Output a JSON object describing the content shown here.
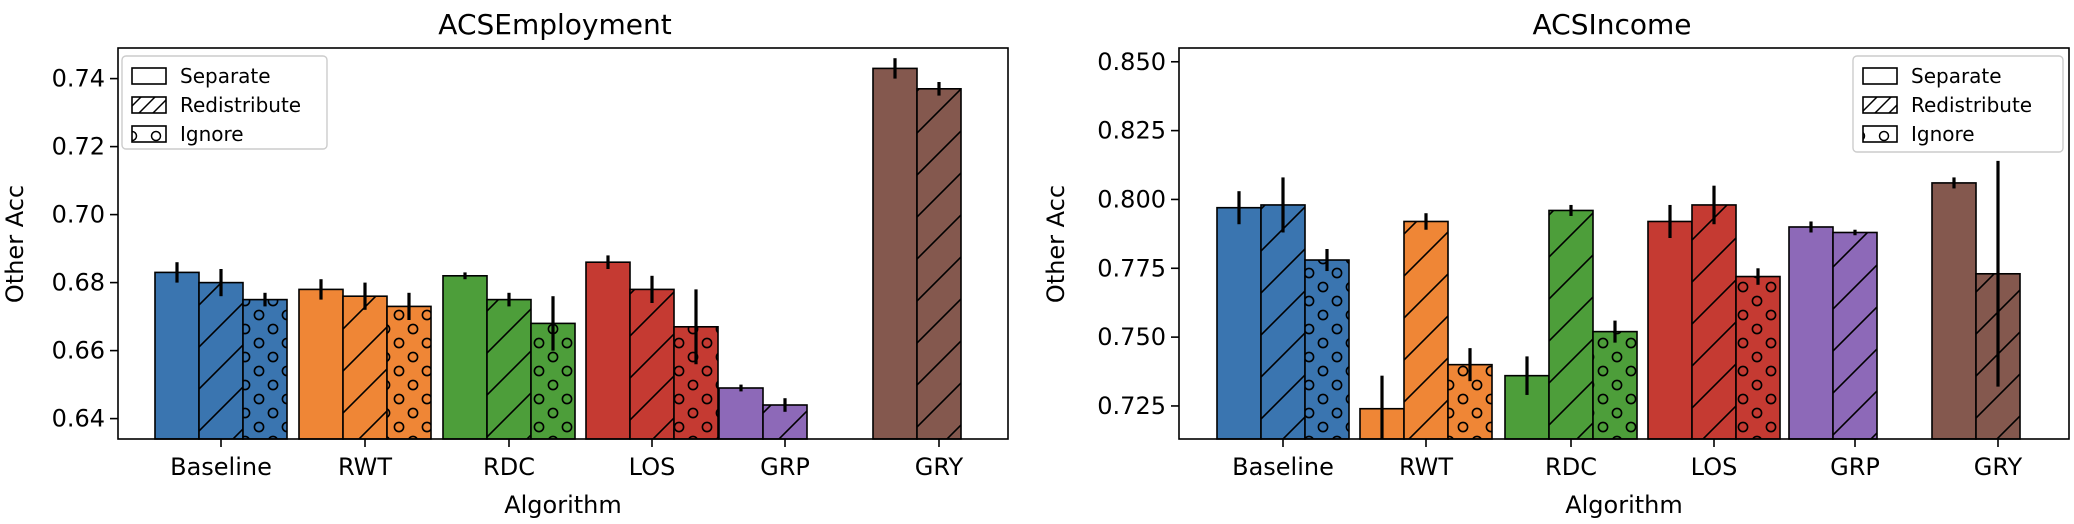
{
  "chart_data": [
    {
      "type": "bar",
      "title": "ACSEmployment",
      "xlabel": "Algorithm",
      "ylabel": "Other Acc",
      "ylim": [
        0.634,
        0.749
      ],
      "yticks": [
        0.64,
        0.66,
        0.68,
        0.7,
        0.72,
        0.74
      ],
      "ytick_labels": [
        "0.64",
        "0.66",
        "0.68",
        "0.70",
        "0.72",
        "0.74"
      ],
      "legend_position": "top-left",
      "categories": [
        "Baseline",
        "RWT",
        "RDC",
        "LOS",
        "GRP",
        "GRY"
      ],
      "category_colors": [
        "#3a75b0",
        "#ef8636",
        "#4d9e3a",
        "#c53a32",
        "#8d69b8",
        "#84584e"
      ],
      "series": [
        {
          "name": "Separate",
          "hatch": "none",
          "values": [
            0.683,
            0.678,
            0.682,
            0.686,
            0.649,
            0.743
          ],
          "errors": [
            0.003,
            0.003,
            0.001,
            0.002,
            0.001,
            0.003
          ]
        },
        {
          "name": "Redistribute",
          "hatch": "diagonal",
          "values": [
            0.68,
            0.676,
            0.675,
            0.678,
            0.644,
            0.737
          ],
          "errors": [
            0.004,
            0.004,
            0.002,
            0.004,
            0.002,
            0.002
          ]
        },
        {
          "name": "Ignore",
          "hatch": "circles",
          "values": [
            0.675,
            0.673,
            0.668,
            0.667,
            null,
            null
          ],
          "errors": [
            0.002,
            0.004,
            0.008,
            0.011,
            null,
            null
          ]
        }
      ]
    },
    {
      "type": "bar",
      "title": "ACSIncome",
      "xlabel": "Algorithm",
      "ylabel": "Other Acc",
      "ylim": [
        0.713,
        0.855
      ],
      "yticks": [
        0.725,
        0.75,
        0.775,
        0.8,
        0.825,
        0.85
      ],
      "ytick_labels": [
        "0.725",
        "0.750",
        "0.775",
        "0.800",
        "0.825",
        "0.850"
      ],
      "legend_position": "top-right",
      "categories": [
        "Baseline",
        "RWT",
        "RDC",
        "LOS",
        "GRP",
        "GRY"
      ],
      "category_colors": [
        "#3a75b0",
        "#ef8636",
        "#4d9e3a",
        "#c53a32",
        "#8d69b8",
        "#84584e"
      ],
      "series": [
        {
          "name": "Separate",
          "hatch": "none",
          "values": [
            0.797,
            0.724,
            0.736,
            0.792,
            0.79,
            0.806
          ],
          "errors": [
            0.006,
            0.012,
            0.007,
            0.006,
            0.002,
            0.002
          ]
        },
        {
          "name": "Redistribute",
          "hatch": "diagonal",
          "values": [
            0.798,
            0.792,
            0.796,
            0.798,
            0.788,
            0.773
          ],
          "errors": [
            0.01,
            0.003,
            0.002,
            0.007,
            0.001,
            0.041
          ]
        },
        {
          "name": "Ignore",
          "hatch": "circles",
          "values": [
            0.778,
            0.74,
            0.752,
            0.772,
            null,
            null
          ],
          "errors": [
            0.004,
            0.006,
            0.004,
            0.003,
            null,
            null
          ]
        }
      ]
    }
  ]
}
